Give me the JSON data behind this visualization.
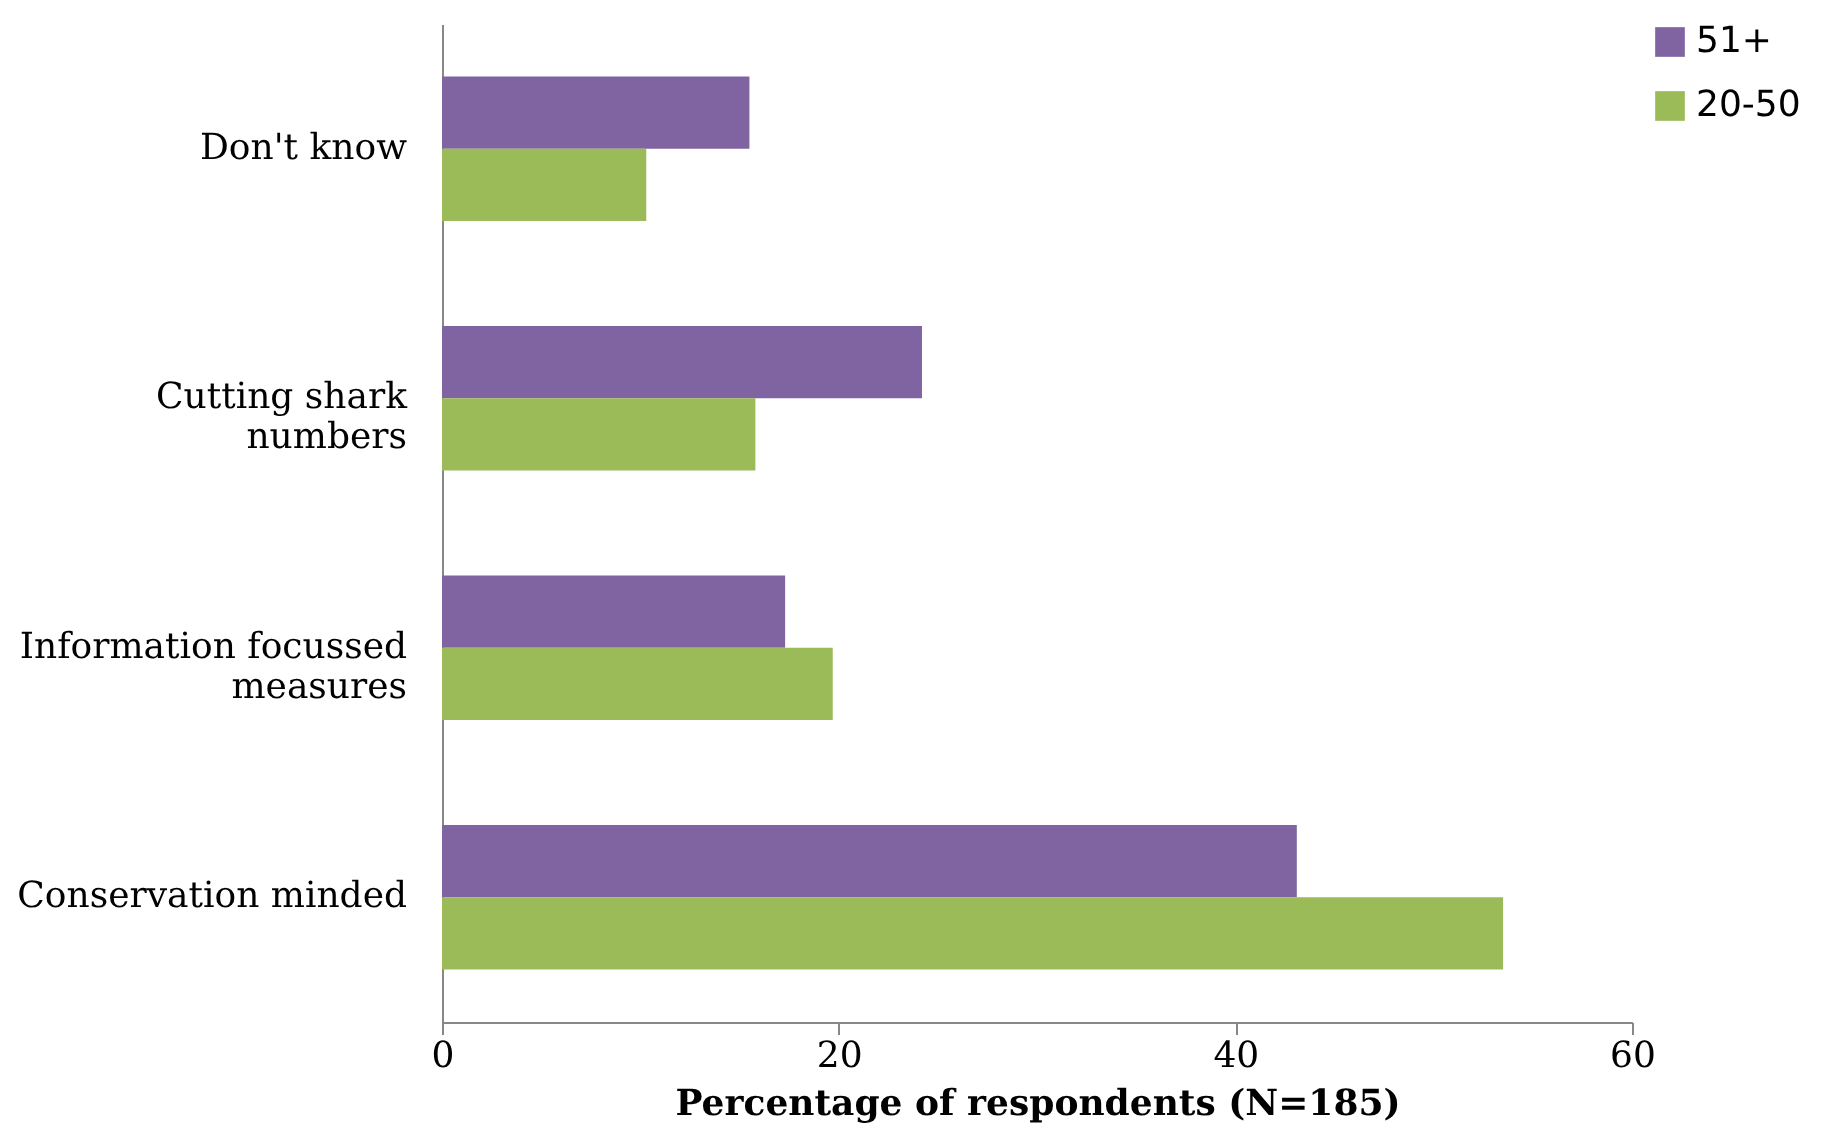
{
  "chart_data": {
    "type": "bar",
    "orientation": "horizontal",
    "xlabel": "Percentage of respondents (N=185)",
    "categories": [
      "Don't know",
      "Cutting shark numbers",
      "Information focussed measures",
      "Conservation minded"
    ],
    "series": [
      {
        "name": "51+",
        "color": "#8064a2",
        "values": [
          15.5,
          24.2,
          17.3,
          43.1
        ]
      },
      {
        "name": "20-50",
        "color": "#9bbb59",
        "values": [
          10.3,
          15.8,
          19.7,
          53.5
        ]
      }
    ],
    "xlim": [
      0,
      60
    ],
    "xticks": [
      0,
      20,
      40,
      60
    ],
    "grid": false,
    "legend": "right"
  }
}
